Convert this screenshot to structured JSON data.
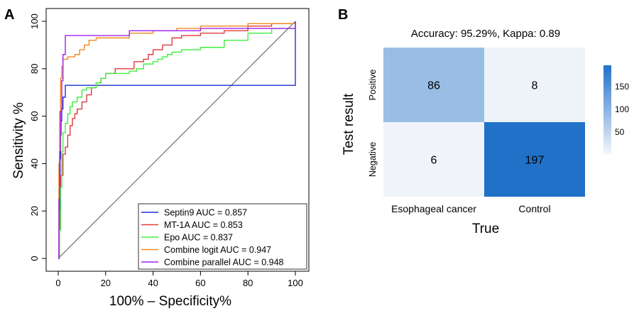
{
  "panel_a": {
    "label": "A",
    "chart_data": {
      "type": "line",
      "title": "",
      "xlabel": "100% – Specificity%",
      "ylabel": "Sensitivity %",
      "xlim": [
        0,
        100
      ],
      "ylim": [
        0,
        100
      ],
      "xticks": [
        "0",
        "20",
        "40",
        "60",
        "80",
        "100"
      ],
      "yticks": [
        "0",
        "20",
        "40",
        "60",
        "80",
        "100"
      ],
      "legend_position": "bottom-right",
      "reference_line": {
        "x": [
          0,
          100
        ],
        "y": [
          0,
          100
        ],
        "color": "#595959"
      },
      "series": [
        {
          "name": "Septin9",
          "legend_label": "Septin9  AUC = 0.857",
          "auc": 0.857,
          "color": "#1f2fd0",
          "x": [
            0,
            0.3,
            0.6,
            0.8,
            1.0,
            1.2,
            1.5,
            2.0,
            3.0,
            100
          ],
          "y": [
            0,
            12,
            24,
            42,
            52,
            58,
            63,
            68,
            73,
            100
          ]
        },
        {
          "name": "MT-1A",
          "legend_label": "MT-1A  AUC = 0.853",
          "auc": 0.853,
          "color": "#e03b3b",
          "x": [
            0,
            0.5,
            1,
            2,
            3,
            4,
            5,
            6,
            7,
            8,
            10,
            12,
            14,
            16,
            18,
            20,
            24,
            28,
            32,
            36,
            38,
            40,
            44,
            48,
            52,
            55,
            60,
            70,
            80,
            90,
            100
          ],
          "y": [
            0,
            20,
            35,
            44,
            47,
            52,
            56,
            59,
            61,
            63,
            66,
            69,
            72,
            74,
            76,
            78,
            80,
            80,
            83,
            84,
            86,
            88,
            90,
            93,
            94,
            94,
            95,
            96,
            98,
            99,
            100
          ]
        },
        {
          "name": "Epo",
          "legend_label": "Epo  AUC = 0.837",
          "auc": 0.837,
          "color": "#3ef03e",
          "x": [
            0,
            0.5,
            1,
            1.5,
            2,
            3,
            4,
            5,
            6,
            8,
            10,
            12,
            14,
            16,
            18,
            20,
            22,
            26,
            30,
            33,
            36,
            38,
            40,
            42,
            44,
            46,
            48,
            50,
            52,
            54,
            56,
            60,
            70,
            80,
            90,
            100
          ],
          "y": [
            0,
            12,
            30,
            45,
            53,
            57,
            61,
            64,
            66,
            68,
            71,
            72,
            72,
            74,
            76,
            78,
            78,
            78,
            79,
            80,
            82,
            82,
            83,
            84,
            85,
            86,
            87,
            87,
            88,
            88,
            88,
            89,
            92,
            95,
            97,
            100
          ]
        },
        {
          "name": "Combine logit",
          "legend_label": "Combine logit  AUC = 0.947",
          "auc": 0.947,
          "color": "#f08a20",
          "x": [
            0,
            0.3,
            0.6,
            1,
            1.5,
            2,
            3,
            4,
            5,
            7,
            9,
            11,
            13,
            16,
            20,
            25,
            30,
            40,
            50,
            60,
            70,
            80,
            90,
            100
          ],
          "y": [
            0,
            40,
            62,
            76,
            81,
            84,
            84,
            85,
            85,
            86,
            88,
            90,
            92,
            93,
            93,
            93,
            95,
            96,
            97,
            98,
            98,
            99,
            99,
            100
          ]
        },
        {
          "name": "Combine parallel",
          "legend_label": "Combine parallel  AUC = 0.948",
          "auc": 0.948,
          "color": "#a020f0",
          "x": [
            0,
            0.3,
            0.6,
            1,
            1.5,
            2,
            3,
            10,
            30,
            60,
            100
          ],
          "y": [
            0,
            25,
            45,
            62,
            75,
            86,
            94,
            94,
            96,
            97,
            100
          ]
        }
      ]
    }
  },
  "panel_b": {
    "label": "B",
    "chart_data": {
      "type": "heatmap",
      "title": "Accuracy: 95.29%, Kappa: 0.89",
      "xlabel": "True",
      "ylabel": "Test result",
      "x_categories": [
        "Esophageal cancer",
        "Control"
      ],
      "y_categories": [
        "Positive",
        "Negative"
      ],
      "values": [
        [
          86,
          8
        ],
        [
          6,
          197
        ]
      ],
      "colorbar": {
        "min": 0,
        "max": 197,
        "ticks": [
          "50",
          "100",
          "150"
        ],
        "tick_values": [
          50,
          100,
          150
        ],
        "low_color": "#f7f7fb",
        "high_color": "#2171c8"
      }
    }
  }
}
